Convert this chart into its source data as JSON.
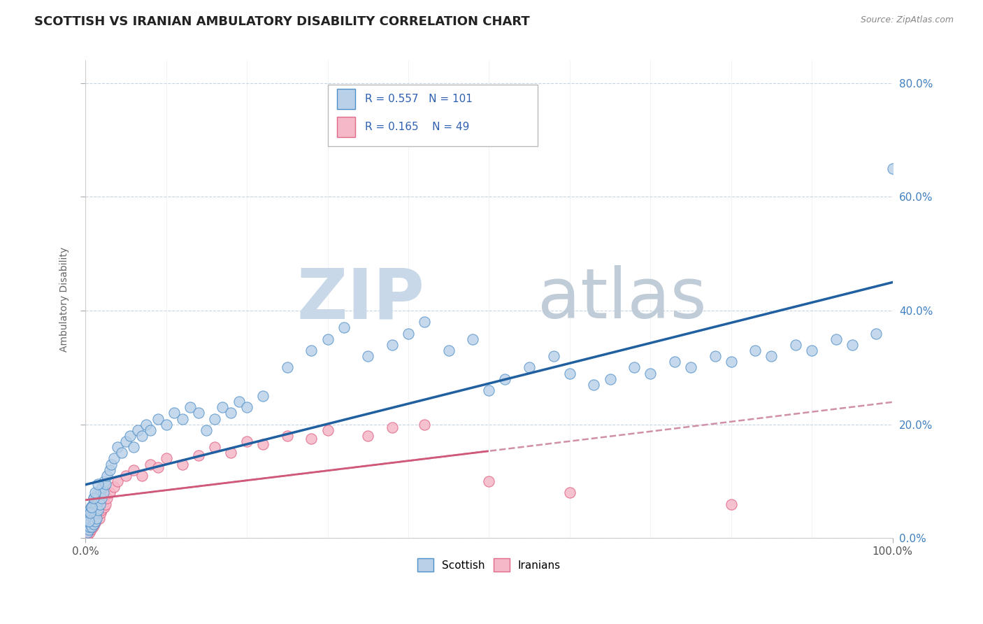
{
  "title": "SCOTTISH VS IRANIAN AMBULATORY DISABILITY CORRELATION CHART",
  "source": "Source: ZipAtlas.com",
  "ylabel": "Ambulatory Disability",
  "xlim": [
    0,
    100
  ],
  "ylim": [
    0,
    84
  ],
  "ytick_values": [
    0,
    20,
    40,
    60,
    80
  ],
  "ytick_labels": [
    "0.0%",
    "20.0%",
    "40.0%",
    "60.0%",
    "80.0%"
  ],
  "legend_r_scottish": "0.557",
  "legend_n_scottish": "101",
  "legend_r_iranians": "0.165",
  "legend_n_iranians": "49",
  "scottish_fill": "#b8d0e8",
  "scottish_edge": "#5090c8",
  "iranian_fill": "#f5b8c8",
  "iranian_edge": "#e06888",
  "scottish_line_color": "#2060a0",
  "iranian_line_color": "#d05878",
  "iranian_dash_color": "#d090a8",
  "background_color": "#ffffff",
  "grid_color": "#c8d4e0",
  "title_fontsize": 13,
  "axis_label_fontsize": 10,
  "tick_fontsize": 11,
  "right_tick_color": "#4080c0",
  "watermark_zip_color": "#c8d8e8",
  "watermark_atlas_color": "#c0ccd8",
  "scottish_x": [
    0.2,
    0.3,
    0.3,
    0.4,
    0.4,
    0.5,
    0.5,
    0.5,
    0.6,
    0.6,
    0.7,
    0.7,
    0.8,
    0.8,
    0.9,
    0.9,
    1.0,
    1.0,
    1.0,
    1.1,
    1.1,
    1.2,
    1.2,
    1.3,
    1.3,
    1.4,
    1.4,
    1.5,
    1.5,
    1.6,
    1.7,
    1.8,
    1.9,
    2.0,
    2.1,
    2.2,
    2.3,
    2.5,
    2.7,
    3.0,
    3.2,
    3.5,
    4.0,
    4.5,
    5.0,
    5.5,
    6.0,
    6.5,
    7.0,
    7.5,
    8.0,
    9.0,
    10.0,
    11.0,
    12.0,
    13.0,
    14.0,
    15.0,
    16.0,
    17.0,
    18.0,
    19.0,
    20.0,
    22.0,
    25.0,
    28.0,
    30.0,
    32.0,
    35.0,
    38.0,
    40.0,
    42.0,
    45.0,
    48.0,
    50.0,
    52.0,
    55.0,
    58.0,
    60.0,
    63.0,
    65.0,
    68.0,
    70.0,
    73.0,
    75.0,
    78.0,
    80.0,
    83.0,
    85.0,
    88.0,
    90.0,
    93.0,
    95.0,
    98.0,
    100.0,
    0.4,
    0.6,
    0.8,
    1.0,
    1.2,
    1.5
  ],
  "scottish_y": [
    1.0,
    2.0,
    3.0,
    1.5,
    4.0,
    2.0,
    3.5,
    5.0,
    2.5,
    4.5,
    3.0,
    5.5,
    2.0,
    4.0,
    3.5,
    6.0,
    2.5,
    5.0,
    7.0,
    4.0,
    6.5,
    3.0,
    5.5,
    4.5,
    7.0,
    3.5,
    6.0,
    5.0,
    8.0,
    6.5,
    7.5,
    6.0,
    8.5,
    7.0,
    9.0,
    8.0,
    10.0,
    9.5,
    11.0,
    12.0,
    13.0,
    14.0,
    16.0,
    15.0,
    17.0,
    18.0,
    16.0,
    19.0,
    18.0,
    20.0,
    19.0,
    21.0,
    20.0,
    22.0,
    21.0,
    23.0,
    22.0,
    19.0,
    21.0,
    23.0,
    22.0,
    24.0,
    23.0,
    25.0,
    30.0,
    33.0,
    35.0,
    37.0,
    32.0,
    34.0,
    36.0,
    38.0,
    33.0,
    35.0,
    26.0,
    28.0,
    30.0,
    32.0,
    29.0,
    27.0,
    28.0,
    30.0,
    29.0,
    31.0,
    30.0,
    32.0,
    31.0,
    33.0,
    32.0,
    34.0,
    33.0,
    35.0,
    34.0,
    36.0,
    65.0,
    3.0,
    4.5,
    5.5,
    7.0,
    8.0,
    9.5
  ],
  "iranian_x": [
    0.2,
    0.3,
    0.4,
    0.5,
    0.6,
    0.7,
    0.8,
    0.9,
    1.0,
    1.1,
    1.2,
    1.3,
    1.4,
    1.5,
    1.6,
    1.7,
    1.8,
    1.9,
    2.0,
    2.1,
    2.2,
    2.3,
    2.4,
    2.5,
    2.7,
    3.0,
    3.5,
    4.0,
    5.0,
    6.0,
    7.0,
    8.0,
    9.0,
    10.0,
    12.0,
    14.0,
    16.0,
    18.0,
    20.0,
    22.0,
    25.0,
    28.0,
    30.0,
    35.0,
    38.0,
    42.0,
    50.0,
    60.0,
    80.0
  ],
  "iranian_y": [
    0.5,
    1.5,
    2.0,
    1.0,
    2.5,
    1.5,
    3.0,
    2.0,
    3.5,
    2.5,
    4.5,
    3.0,
    5.0,
    4.0,
    5.5,
    3.5,
    6.0,
    4.5,
    5.0,
    6.5,
    7.0,
    5.5,
    7.5,
    6.0,
    7.0,
    8.0,
    9.0,
    10.0,
    11.0,
    12.0,
    11.0,
    13.0,
    12.5,
    14.0,
    13.0,
    14.5,
    16.0,
    15.0,
    17.0,
    16.5,
    18.0,
    17.5,
    19.0,
    18.0,
    19.5,
    20.0,
    10.0,
    8.0,
    6.0
  ]
}
